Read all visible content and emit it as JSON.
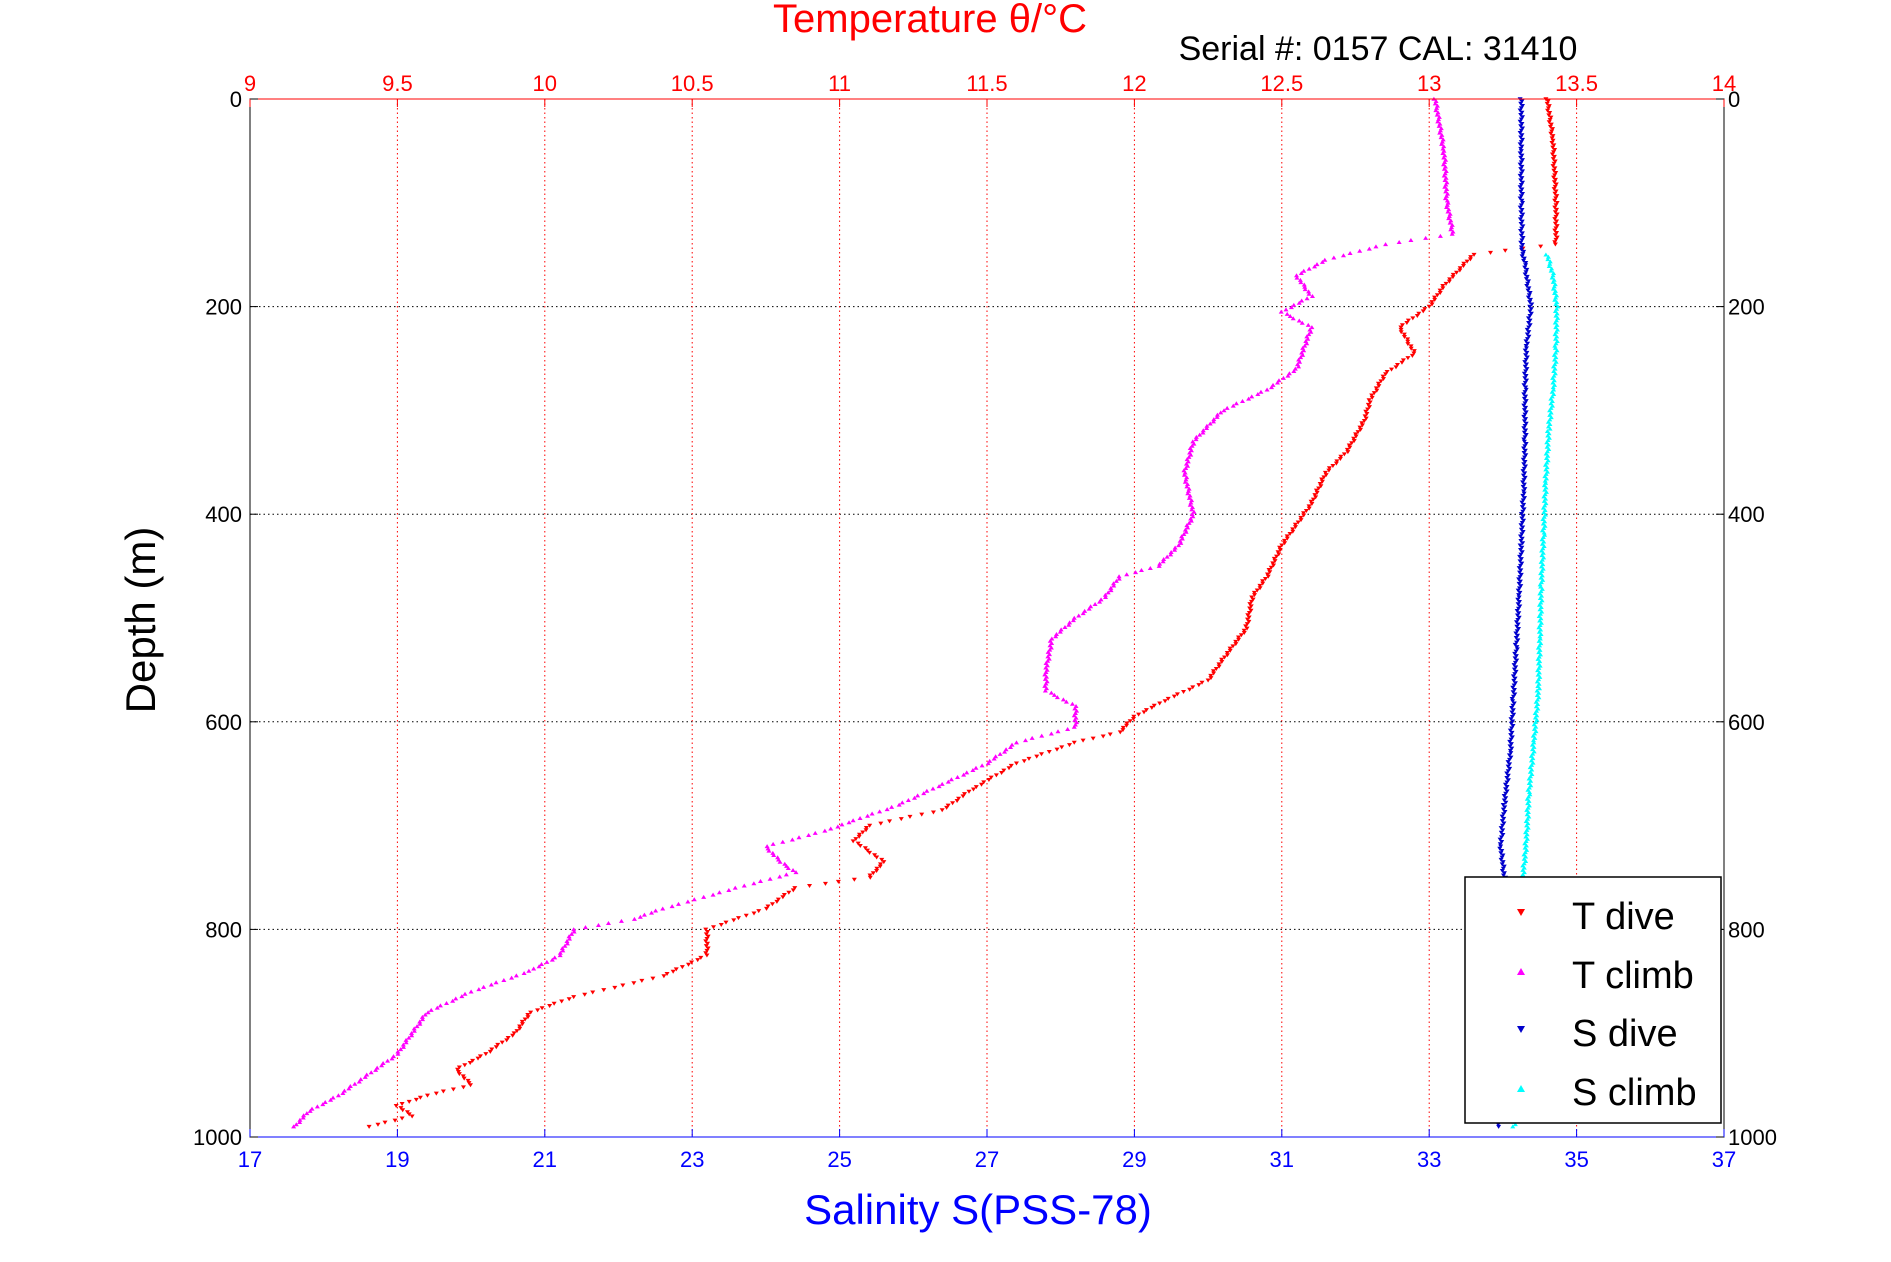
{
  "chart_data": {
    "type": "scatter",
    "title": "Temperature θ/°C",
    "subtitle": "Serial #: 0157  CAL: 31410",
    "ylabel": "Depth (m)",
    "xlabel_bottom": "Salinity S(PSS-78)",
    "xlabel_top": "Temperature θ/°C",
    "y_range": [
      0,
      1000
    ],
    "y_reversed": true,
    "y_ticks": [
      0,
      200,
      400,
      600,
      800,
      1000
    ],
    "x_bottom_range": [
      17,
      37
    ],
    "x_bottom_ticks": [
      17,
      19,
      21,
      23,
      25,
      27,
      29,
      31,
      33,
      35,
      37
    ],
    "x_top_range": [
      9,
      14
    ],
    "x_top_ticks": [
      "9",
      "9.5",
      "10",
      "10.5",
      "11",
      "11.5",
      "12",
      "12.5",
      "13",
      "13.5",
      "14"
    ],
    "grid": true,
    "legend_position": "bottom-right",
    "colors": {
      "temperature_axis": "#ff0000",
      "salinity_axis": "#0000ff",
      "t_dive": "#ff0000",
      "t_climb": "#ff00ff",
      "s_dive": "#0000cc",
      "s_climb": "#00ffff"
    },
    "series": [
      {
        "name": "T dive",
        "axis": "temperature",
        "color": "#ff0000",
        "marker": "triangle-down",
        "points": [
          [
            13.4,
            0
          ],
          [
            13.42,
            40
          ],
          [
            13.43,
            100
          ],
          [
            13.43,
            140
          ],
          [
            13.15,
            150
          ],
          [
            13.05,
            180
          ],
          [
            13.0,
            200
          ],
          [
            12.9,
            220
          ],
          [
            12.95,
            245
          ],
          [
            12.85,
            265
          ],
          [
            12.8,
            290
          ],
          [
            12.78,
            310
          ],
          [
            12.72,
            340
          ],
          [
            12.65,
            360
          ],
          [
            12.6,
            390
          ],
          [
            12.55,
            410
          ],
          [
            12.5,
            430
          ],
          [
            12.45,
            460
          ],
          [
            12.4,
            480
          ],
          [
            12.38,
            510
          ],
          [
            12.3,
            540
          ],
          [
            12.25,
            560
          ],
          [
            12.1,
            580
          ],
          [
            12.0,
            595
          ],
          [
            11.95,
            610
          ],
          [
            11.8,
            620
          ],
          [
            11.6,
            640
          ],
          [
            11.45,
            665
          ],
          [
            11.35,
            685
          ],
          [
            11.1,
            700
          ],
          [
            11.05,
            715
          ],
          [
            11.15,
            735
          ],
          [
            11.1,
            750
          ],
          [
            10.85,
            760
          ],
          [
            10.75,
            780
          ],
          [
            10.55,
            800
          ],
          [
            10.55,
            825
          ],
          [
            10.4,
            845
          ],
          [
            10.1,
            865
          ],
          [
            9.95,
            880
          ],
          [
            9.9,
            900
          ],
          [
            9.8,
            920
          ],
          [
            9.7,
            935
          ],
          [
            9.75,
            950
          ],
          [
            9.6,
            960
          ],
          [
            9.5,
            970
          ],
          [
            9.55,
            980
          ],
          [
            9.4,
            990
          ]
        ]
      },
      {
        "name": "T climb",
        "axis": "temperature",
        "color": "#ff00ff",
        "marker": "triangle-up",
        "points": [
          [
            13.02,
            0
          ],
          [
            13.05,
            50
          ],
          [
            13.06,
            100
          ],
          [
            13.08,
            130
          ],
          [
            12.85,
            140
          ],
          [
            12.65,
            155
          ],
          [
            12.55,
            170
          ],
          [
            12.6,
            190
          ],
          [
            12.5,
            205
          ],
          [
            12.6,
            220
          ],
          [
            12.55,
            260
          ],
          [
            12.45,
            280
          ],
          [
            12.3,
            300
          ],
          [
            12.2,
            330
          ],
          [
            12.17,
            360
          ],
          [
            12.2,
            400
          ],
          [
            12.15,
            430
          ],
          [
            12.08,
            450
          ],
          [
            11.95,
            460
          ],
          [
            11.9,
            480
          ],
          [
            11.8,
            500
          ],
          [
            11.72,
            520
          ],
          [
            11.7,
            550
          ],
          [
            11.7,
            570
          ],
          [
            11.8,
            585
          ],
          [
            11.8,
            605
          ],
          [
            11.6,
            620
          ],
          [
            11.5,
            640
          ],
          [
            11.35,
            660
          ],
          [
            11.2,
            680
          ],
          [
            11.05,
            695
          ],
          [
            10.95,
            705
          ],
          [
            10.75,
            720
          ],
          [
            10.8,
            735
          ],
          [
            10.85,
            745
          ],
          [
            10.65,
            760
          ],
          [
            10.4,
            780
          ],
          [
            10.3,
            790
          ],
          [
            10.1,
            800
          ],
          [
            10.05,
            825
          ],
          [
            9.95,
            840
          ],
          [
            9.75,
            860
          ],
          [
            9.6,
            880
          ],
          [
            9.55,
            900
          ],
          [
            9.5,
            920
          ],
          [
            9.4,
            940
          ],
          [
            9.3,
            960
          ],
          [
            9.2,
            975
          ],
          [
            9.15,
            990
          ]
        ]
      },
      {
        "name": "S dive",
        "axis": "salinity",
        "color": "#0000cc",
        "marker": "triangle-down",
        "points": [
          [
            34.25,
            0
          ],
          [
            34.25,
            50
          ],
          [
            34.25,
            100
          ],
          [
            34.26,
            145
          ],
          [
            34.3,
            160
          ],
          [
            34.38,
            200
          ],
          [
            34.32,
            240
          ],
          [
            34.3,
            280
          ],
          [
            34.3,
            330
          ],
          [
            34.28,
            380
          ],
          [
            34.25,
            430
          ],
          [
            34.22,
            480
          ],
          [
            34.18,
            530
          ],
          [
            34.14,
            580
          ],
          [
            34.1,
            630
          ],
          [
            34.02,
            680
          ],
          [
            33.97,
            720
          ],
          [
            34.02,
            750
          ],
          [
            34.02,
            780
          ],
          [
            33.95,
            800
          ],
          [
            33.95,
            850
          ],
          [
            33.97,
            900
          ],
          [
            34.0,
            950
          ],
          [
            33.95,
            990
          ]
        ]
      },
      {
        "name": "S climb",
        "axis": "salinity",
        "color": "#00ffff",
        "marker": "triangle-up",
        "points": [
          [
            34.6,
            150
          ],
          [
            34.68,
            170
          ],
          [
            34.73,
            200
          ],
          [
            34.72,
            240
          ],
          [
            34.68,
            280
          ],
          [
            34.62,
            320
          ],
          [
            34.58,
            370
          ],
          [
            34.55,
            420
          ],
          [
            34.52,
            470
          ],
          [
            34.5,
            520
          ],
          [
            34.48,
            570
          ],
          [
            34.42,
            620
          ],
          [
            34.35,
            670
          ],
          [
            34.33,
            700
          ],
          [
            34.3,
            730
          ],
          [
            34.25,
            760
          ],
          [
            34.18,
            800
          ],
          [
            34.15,
            850
          ],
          [
            34.15,
            900
          ],
          [
            34.2,
            950
          ],
          [
            34.15,
            990
          ]
        ]
      }
    ]
  }
}
